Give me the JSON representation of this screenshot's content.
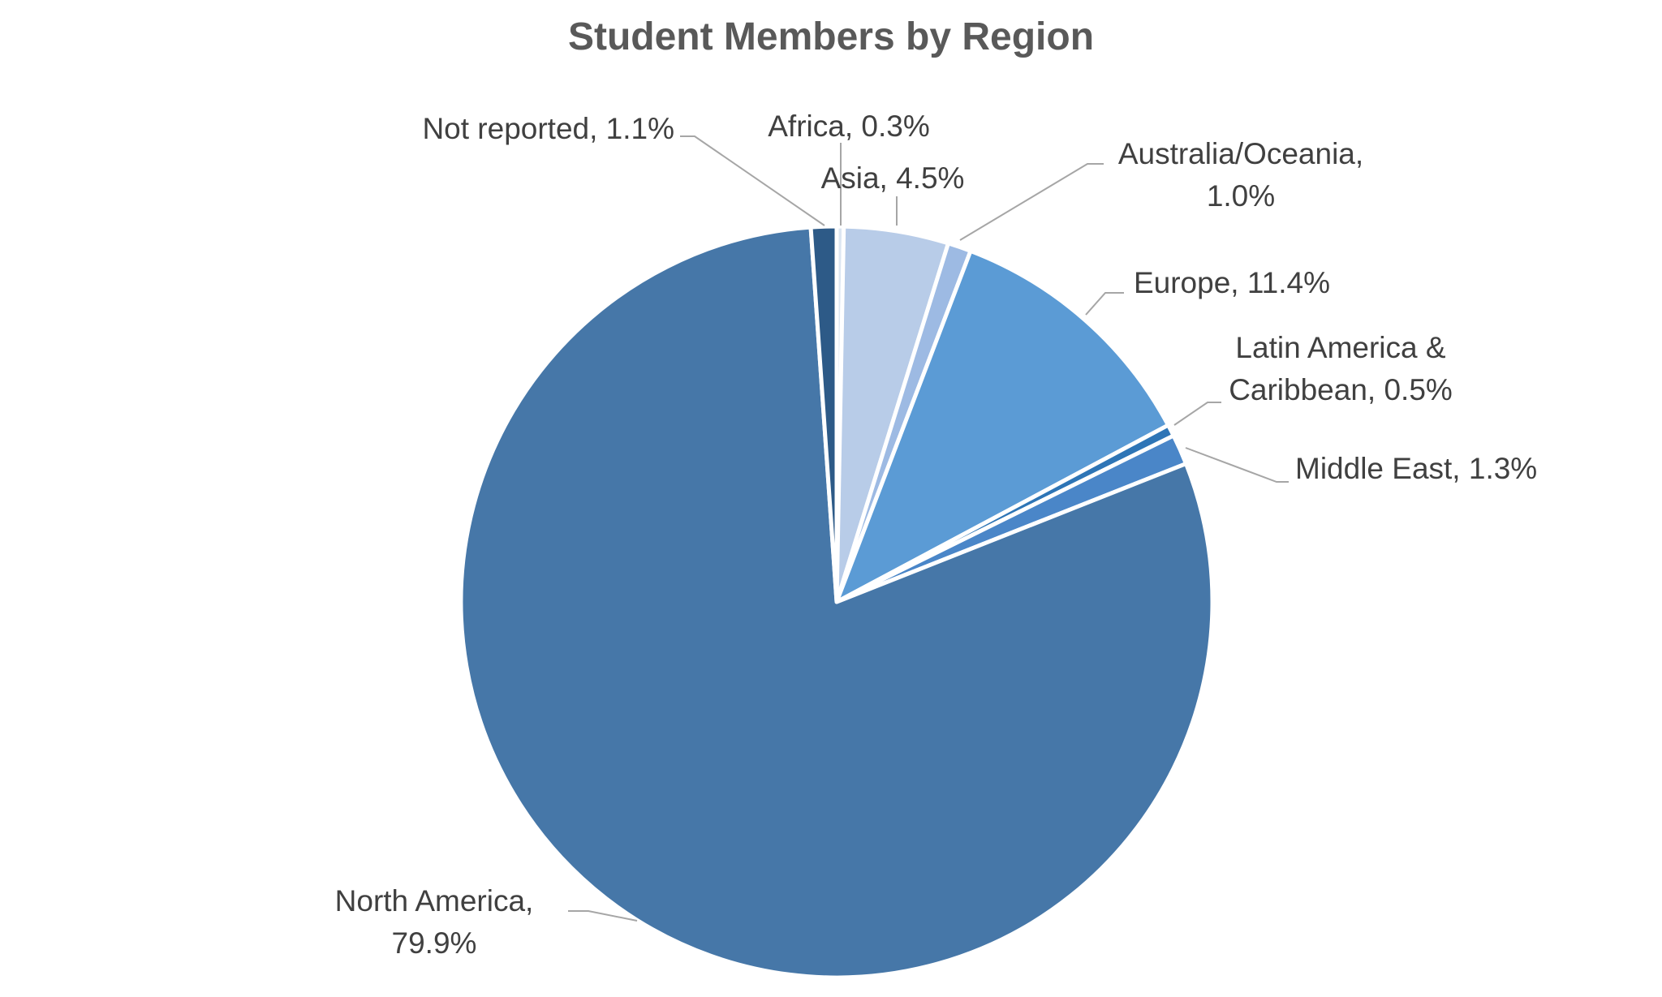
{
  "chart_data": {
    "type": "pie",
    "title": "Student Members by Region",
    "slices": [
      {
        "label": [
          "Africa, 0.3%"
        ],
        "value": 0.3,
        "color": "#dce6f2"
      },
      {
        "label": [
          "Asia, 4.5%"
        ],
        "value": 4.5,
        "color": "#b8cce8"
      },
      {
        "label": [
          "Australia/Oceania,",
          "1.0%"
        ],
        "value": 1.0,
        "color": "#9dbae3"
      },
      {
        "label": [
          "Europe, 11.4%"
        ],
        "value": 11.4,
        "color": "#5b9bd5"
      },
      {
        "label": [
          "Latin America &",
          "Caribbean, 0.5%"
        ],
        "value": 0.5,
        "color": "#2e75b6"
      },
      {
        "label": [
          "Middle East, 1.3%"
        ],
        "value": 1.3,
        "color": "#4a86c8"
      },
      {
        "label": [
          "North America,",
          "79.9%"
        ],
        "value": 79.9,
        "color": "#4677a8"
      },
      {
        "label": [
          "Not reported, 1.1%"
        ],
        "value": 1.1,
        "color": "#2d5a87"
      }
    ],
    "legend": false
  }
}
